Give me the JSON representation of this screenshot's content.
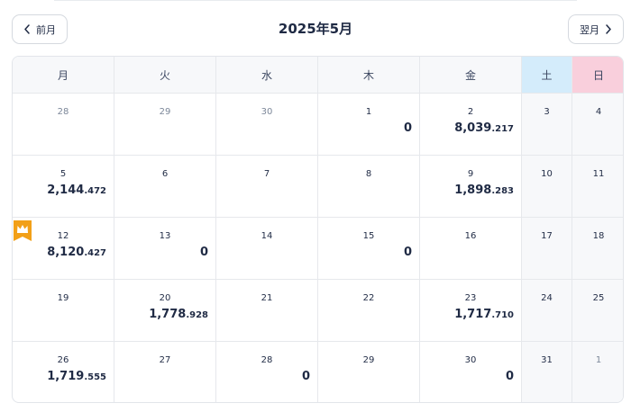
{
  "nav": {
    "prev_label": "前月",
    "next_label": "翌月"
  },
  "title": "2025年5月",
  "colors": {
    "saturday": "#d4ecfb",
    "sunday": "#f9cfdc",
    "crown": "#f2a018",
    "text": "#1f2a44"
  },
  "weekdays": [
    "月",
    "火",
    "水",
    "木",
    "金",
    "土",
    "日"
  ],
  "weeks": [
    [
      {
        "day": "28",
        "muted": true
      },
      {
        "day": "29",
        "muted": true
      },
      {
        "day": "30",
        "muted": true
      },
      {
        "day": "1",
        "int": "0"
      },
      {
        "day": "2",
        "int": "8,039",
        "dec": ".217"
      },
      {
        "day": "3"
      },
      {
        "day": "4"
      }
    ],
    [
      {
        "day": "5",
        "int": "2,144",
        "dec": ".472"
      },
      {
        "day": "6"
      },
      {
        "day": "7"
      },
      {
        "day": "8"
      },
      {
        "day": "9",
        "int": "1,898",
        "dec": ".283"
      },
      {
        "day": "10"
      },
      {
        "day": "11"
      }
    ],
    [
      {
        "day": "12",
        "int": "8,120",
        "dec": ".427",
        "crown": true
      },
      {
        "day": "13",
        "int": "0"
      },
      {
        "day": "14"
      },
      {
        "day": "15",
        "int": "0"
      },
      {
        "day": "16"
      },
      {
        "day": "17"
      },
      {
        "day": "18"
      }
    ],
    [
      {
        "day": "19"
      },
      {
        "day": "20",
        "int": "1,778",
        "dec": ".928"
      },
      {
        "day": "21"
      },
      {
        "day": "22"
      },
      {
        "day": "23",
        "int": "1,717",
        "dec": ".710"
      },
      {
        "day": "24"
      },
      {
        "day": "25"
      }
    ],
    [
      {
        "day": "26",
        "int": "1,719",
        "dec": ".555"
      },
      {
        "day": "27"
      },
      {
        "day": "28",
        "int": "0"
      },
      {
        "day": "29"
      },
      {
        "day": "30",
        "int": "0"
      },
      {
        "day": "31"
      },
      {
        "day": "1",
        "muted": true
      }
    ]
  ]
}
